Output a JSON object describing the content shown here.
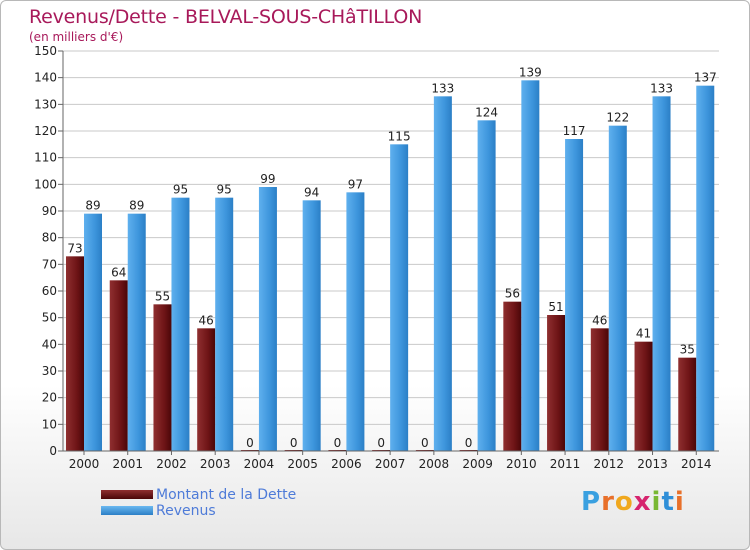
{
  "title": "Revenus/Dette - BELVAL-SOUS-CHâTILLON",
  "subtitle": "(en milliers d'€)",
  "brand": "Proxiti",
  "colors": {
    "title": "#a8195a",
    "dette": "#7a1f22",
    "revenus": "#4aa0e4",
    "grid": "#c9c9c9",
    "legend_text": "#4e7bd8"
  },
  "legend": [
    {
      "label": "Montant de la Dette",
      "color": "#7a1f22"
    },
    {
      "label": "Revenus",
      "color": "#4aa0e4"
    }
  ],
  "chart_data": {
    "type": "bar",
    "title": "Revenus/Dette - BELVAL-SOUS-CHâTILLON",
    "subtitle": "(en milliers d'€)",
    "xlabel": "",
    "ylabel": "",
    "ylim": [
      0,
      150
    ],
    "yticks": [
      0,
      10,
      20,
      30,
      40,
      50,
      60,
      70,
      80,
      90,
      100,
      110,
      120,
      130,
      140,
      150
    ],
    "grid": true,
    "legend_position": "bottom-left",
    "categories": [
      "2000",
      "2001",
      "2002",
      "2003",
      "2004",
      "2005",
      "2006",
      "2007",
      "2008",
      "2009",
      "2010",
      "2011",
      "2012",
      "2013",
      "2014"
    ],
    "series": [
      {
        "name": "Montant de la Dette",
        "values": [
          73,
          64,
          55,
          46,
          0,
          0,
          0,
          0,
          0,
          0,
          56,
          51,
          46,
          41,
          35
        ]
      },
      {
        "name": "Revenus",
        "values": [
          89,
          89,
          95,
          95,
          99,
          94,
          97,
          115,
          133,
          124,
          139,
          117,
          122,
          133,
          137
        ]
      }
    ]
  }
}
